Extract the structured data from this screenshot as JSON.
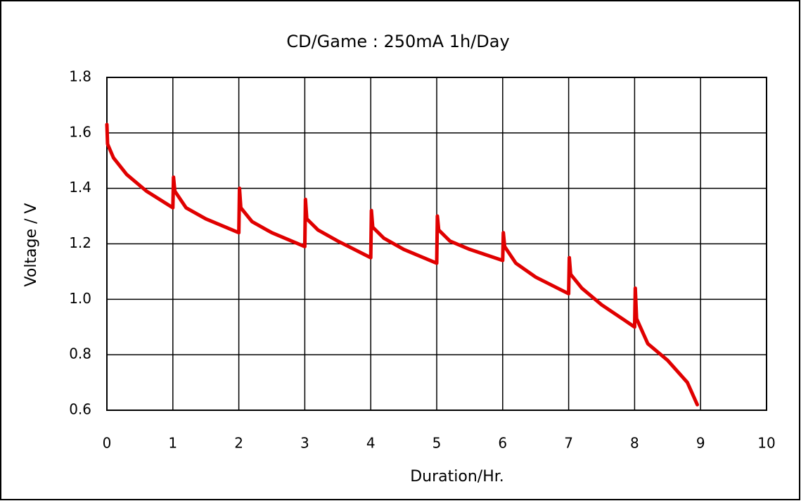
{
  "chart_data": {
    "type": "line",
    "title": "CD/Game : 250mA 1h/Day",
    "x_label": "Duration/Hr.",
    "y_label": "Voltage / V",
    "xlim": [
      0,
      10
    ],
    "xticks": [
      0,
      1,
      2,
      3,
      4,
      5,
      6,
      7,
      8,
      9,
      10
    ],
    "ylim": [
      0.6,
      1.8
    ],
    "yticks": [
      0.6,
      0.8,
      {
        "value": 1,
        "label": "1.0"
      },
      1.2,
      1.4,
      1.6,
      1.8
    ],
    "grid": true,
    "series": [
      {
        "name": "Voltage",
        "color": "#e00000",
        "x": [
          0,
          0.01,
          0.1,
          0.3,
          0.6,
          1.0,
          1.01,
          1.03,
          1.2,
          1.5,
          2.0,
          2.01,
          2.03,
          2.2,
          2.5,
          3.0,
          3.01,
          3.03,
          3.2,
          3.5,
          4.0,
          4.01,
          4.03,
          4.2,
          4.5,
          5.0,
          5.01,
          5.03,
          5.2,
          5.5,
          6.0,
          6.01,
          6.03,
          6.2,
          6.5,
          7.0,
          7.01,
          7.03,
          7.2,
          7.5,
          8.0,
          8.01,
          8.03,
          8.2,
          8.5,
          8.8,
          8.95
        ],
        "values": [
          1.63,
          1.56,
          1.51,
          1.45,
          1.39,
          1.33,
          1.44,
          1.39,
          1.33,
          1.29,
          1.24,
          1.4,
          1.33,
          1.28,
          1.24,
          1.19,
          1.36,
          1.29,
          1.25,
          1.21,
          1.15,
          1.32,
          1.26,
          1.22,
          1.18,
          1.13,
          1.3,
          1.25,
          1.21,
          1.18,
          1.14,
          1.24,
          1.19,
          1.13,
          1.08,
          1.02,
          1.15,
          1.09,
          1.04,
          0.98,
          0.9,
          1.04,
          0.93,
          0.84,
          0.78,
          0.7,
          0.62
        ]
      }
    ]
  }
}
